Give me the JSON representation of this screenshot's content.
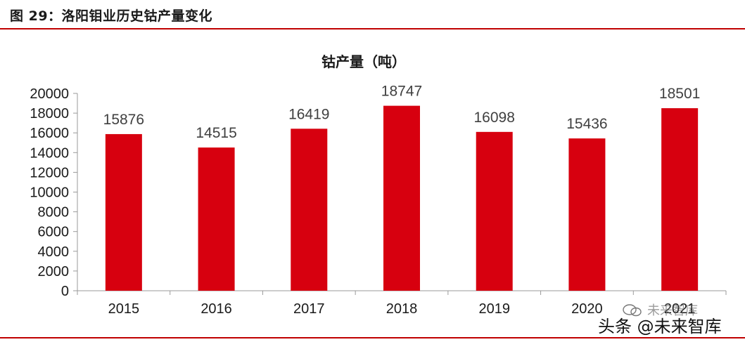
{
  "figure": {
    "header": "图 29：洛阳钼业历史钴产量变化"
  },
  "watermark": {
    "main": "头条 @未来智库",
    "ghost": "未来智库"
  },
  "colors": {
    "bar": "#d7000f",
    "rule": "#c00000",
    "axis": "#9a9a9a",
    "text": "#1a1a1a",
    "label": "#404040"
  },
  "chart_data": {
    "type": "bar",
    "title": "钴产量（吨）",
    "categories": [
      "2015",
      "2016",
      "2017",
      "2018",
      "2019",
      "2020",
      "2021"
    ],
    "values": [
      15876,
      14515,
      16419,
      18747,
      16098,
      15436,
      18501
    ],
    "ylim": [
      0,
      20000
    ],
    "yticks": [
      0,
      2000,
      4000,
      6000,
      8000,
      10000,
      12000,
      14000,
      16000,
      18000,
      20000
    ],
    "xlabel": "",
    "ylabel": "",
    "grid": false,
    "legend": "none",
    "data_labels": true
  }
}
